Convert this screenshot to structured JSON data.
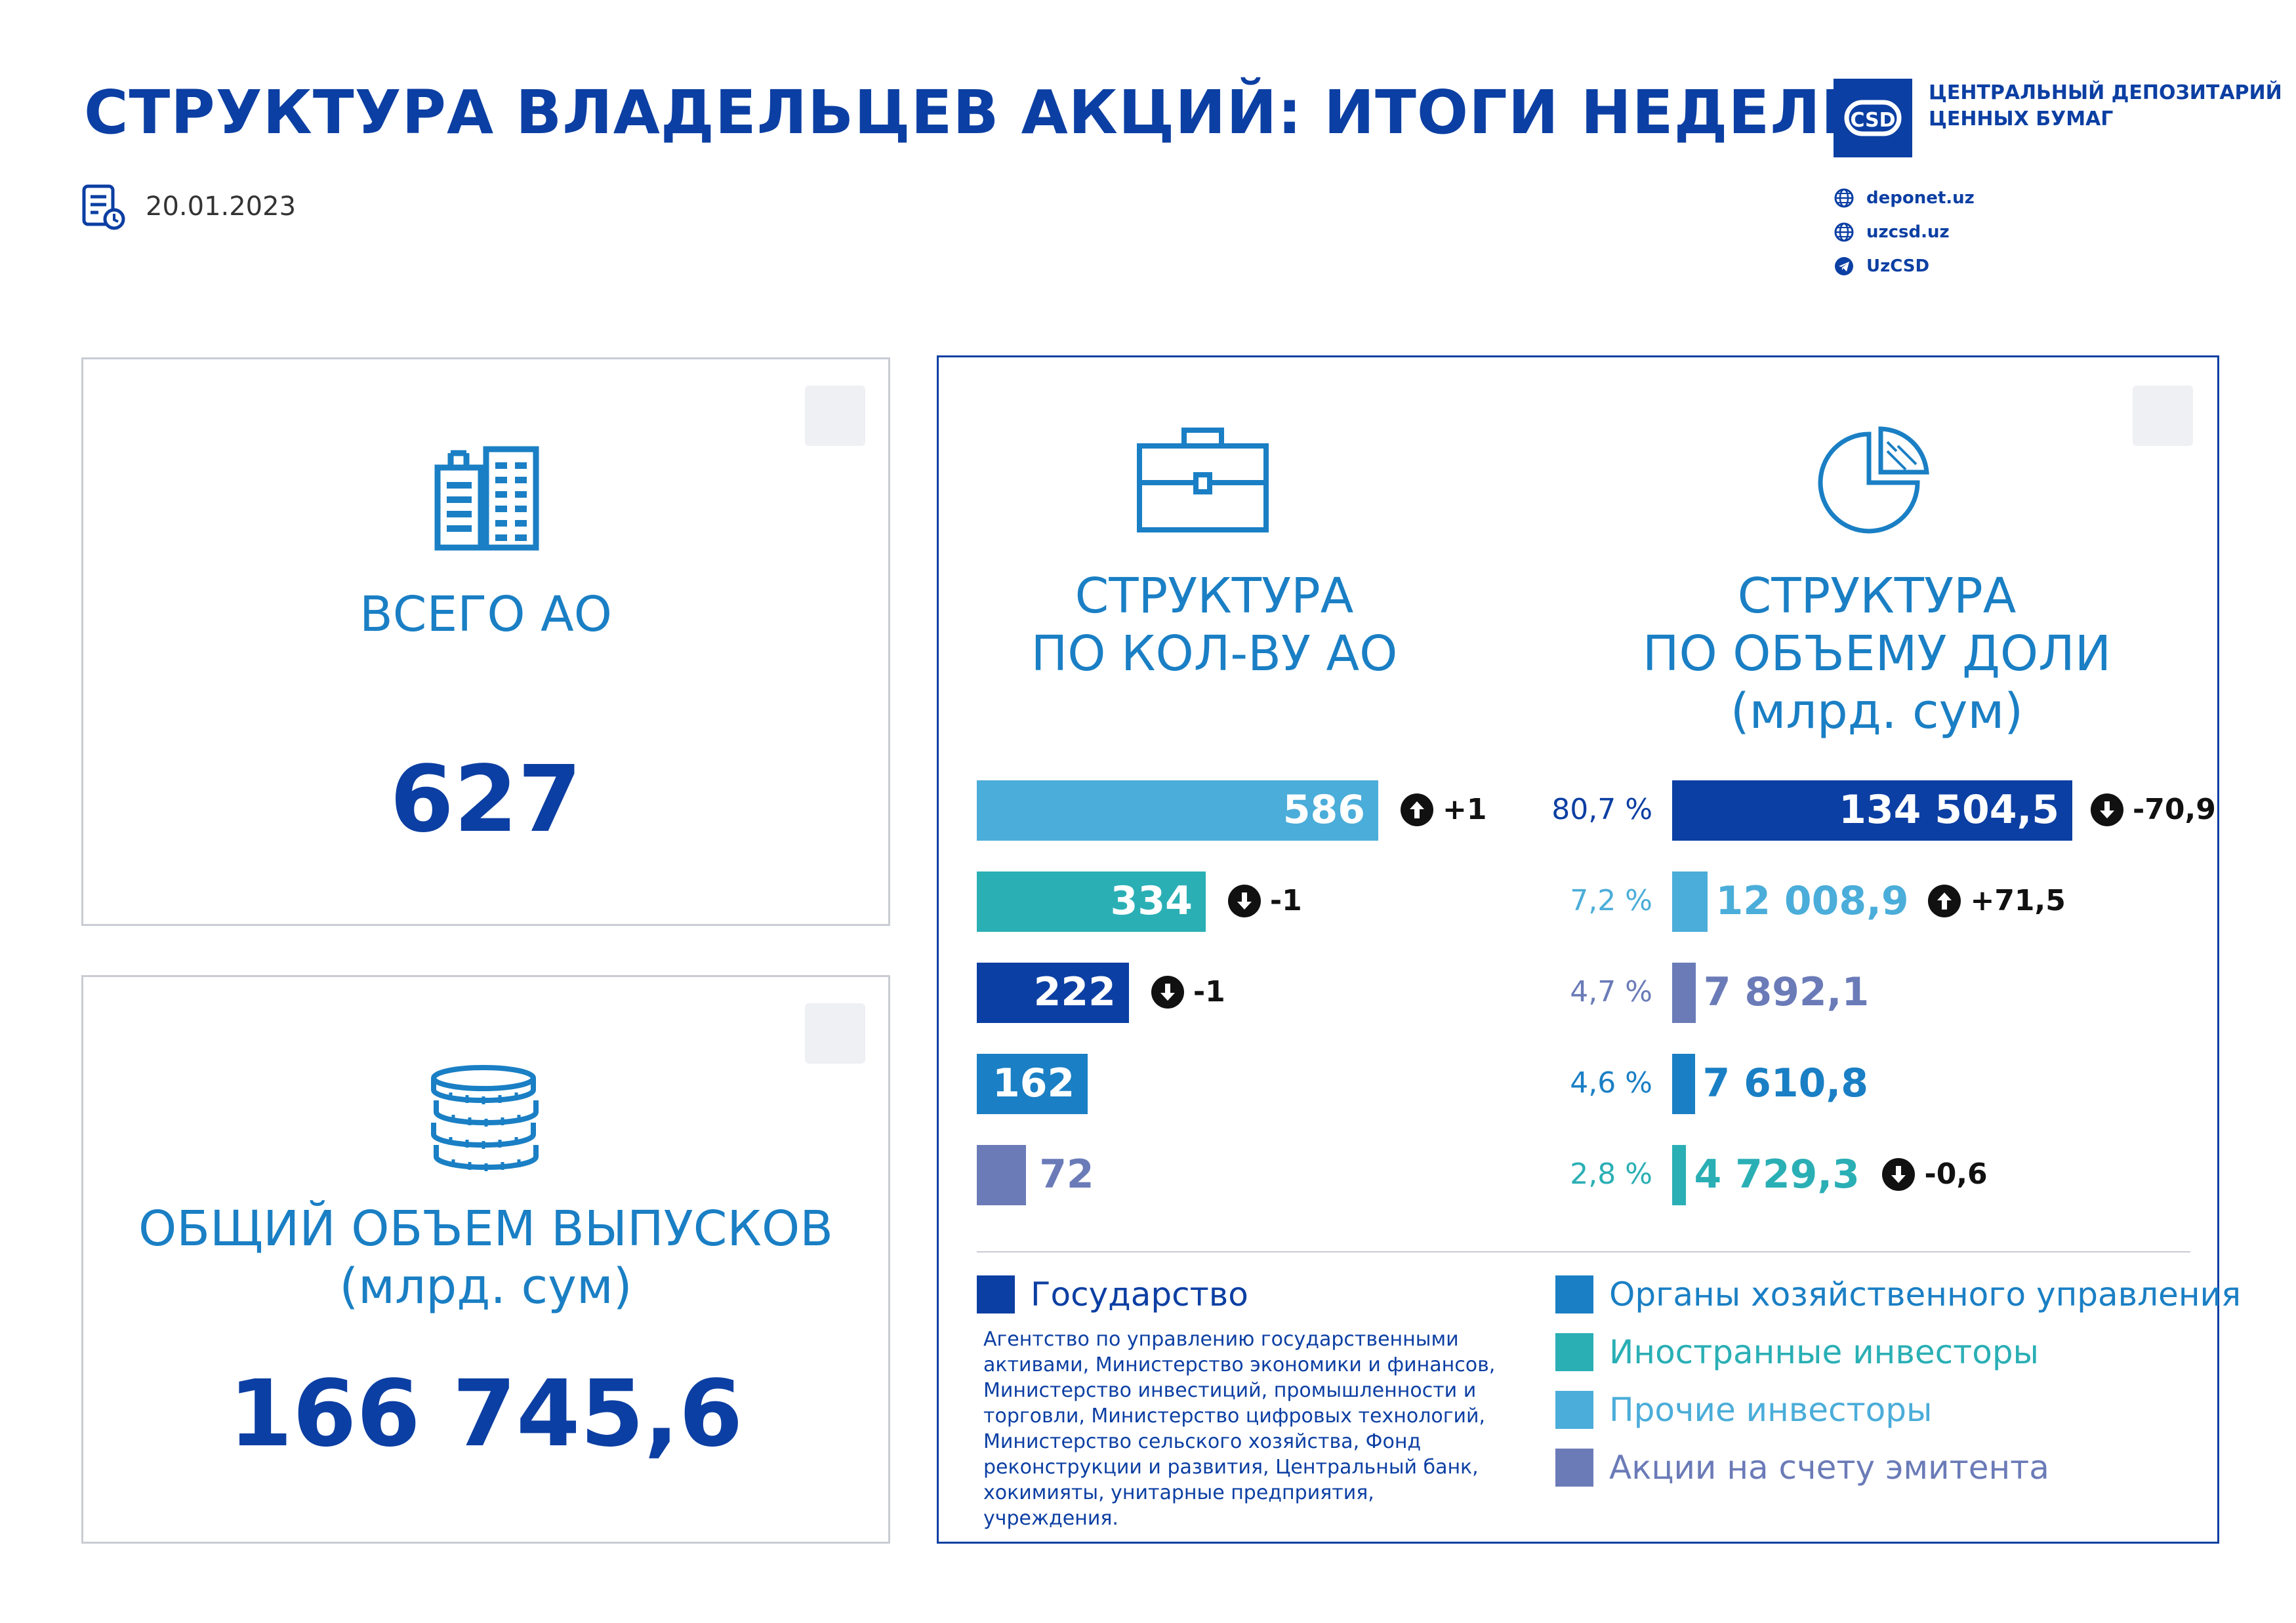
{
  "header": {
    "title": "СТРУКТУРА ВЛАДЕЛЬЦЕВ АКЦИЙ: ИТОГИ НЕДЕЛИ",
    "date": "20.01.2023",
    "org_name_line1": "ЦЕНТРАЛЬНЫЙ ДЕПОЗИТАРИЙ",
    "org_name_line2": "ЦЕННЫХ БУМАГ",
    "logo_text": "CSD",
    "links": [
      "deponet.uz",
      "uzcsd.uz",
      "UzCSD"
    ]
  },
  "total_ao": {
    "label": "ВСЕГО АО",
    "value": "627"
  },
  "total_volume": {
    "label_line1": "ОБЩИЙ ОБЪЕМ ВЫПУСКОВ",
    "label_line2": "(млрд. сум)",
    "value": "166 745,6"
  },
  "count_section": {
    "heading_line1": "СТРУКТУРА",
    "heading_line2": "ПО КОЛ-ВУ АО"
  },
  "share_section": {
    "heading_line1": "СТРУКТУРА",
    "heading_line2": "ПО ОБЪЕМУ ДОЛИ",
    "heading_line3": "(млрд. сум)"
  },
  "chart_data": [
    {
      "type": "bar",
      "title": "СТРУКТУРА ПО КОЛ-ВУ АО",
      "orientation": "horizontal",
      "categories": [
        "Прочие инвесторы",
        "Иностранные инвесторы",
        "Государство",
        "Органы хозяйственного управления",
        "Акции на счету эмитента"
      ],
      "values": [
        586,
        334,
        222,
        162,
        72
      ],
      "labels": [
        "586",
        "334",
        "222",
        "162",
        "72"
      ],
      "changes": [
        "+1",
        "-1",
        "-1",
        "",
        ""
      ],
      "change_dirs": [
        "up",
        "down",
        "down",
        "",
        ""
      ],
      "colors": [
        "#4badd9",
        "#2aafb5",
        "#0c3fa3",
        "#1a7fc4",
        "#6b7bb8"
      ],
      "xlim": [
        0,
        586
      ]
    },
    {
      "type": "bar",
      "title": "СТРУКТУРА ПО ОБЪЕМУ ДОЛИ (млрд. сум)",
      "orientation": "horizontal",
      "categories": [
        "Государство",
        "Прочие инвесторы",
        "Акции на счету эмитента",
        "Органы хозяйственного управления",
        "Иностранные инвесторы"
      ],
      "values": [
        134504.5,
        12008.9,
        7892.1,
        7610.8,
        4729.3
      ],
      "labels": [
        "134 504,5",
        "12 008,9",
        "7 892,1",
        "7 610,8",
        "4 729,3"
      ],
      "percents": [
        "80,7 %",
        "7,2 %",
        "4,7 %",
        "4,6 %",
        "2,8 %"
      ],
      "changes": [
        "-70,9",
        "+71,5",
        "",
        "",
        "-0,6"
      ],
      "change_dirs": [
        "down",
        "up",
        "",
        "",
        "down"
      ],
      "colors": [
        "#0c3fa3",
        "#4badd9",
        "#6b7bb8",
        "#1a7fc4",
        "#2aafb5"
      ],
      "xlim": [
        0,
        134504.5
      ]
    }
  ],
  "legend": {
    "state": {
      "label": "Государство",
      "color": "#0c3fa3"
    },
    "state_note": "Агентство по управлению государственными активами, Министерство экономики и финансов, Министерство инвестиций, промышленности и торговли, Министерство цифровых технологий, Министерство сельского хозяйства, Фонд реконструкции и развития, Центральный банк, хокимияты, унитарные предприятия, учреждения.",
    "items": [
      {
        "label": "Органы хозяйственного управления",
        "color": "#1a7fc4"
      },
      {
        "label": "Иностранные инвесторы",
        "color": "#2aafb5"
      },
      {
        "label": "Прочие инвесторы",
        "color": "#4badd9"
      },
      {
        "label": "Акции на счету эмитента",
        "color": "#6b7bb8"
      }
    ]
  }
}
